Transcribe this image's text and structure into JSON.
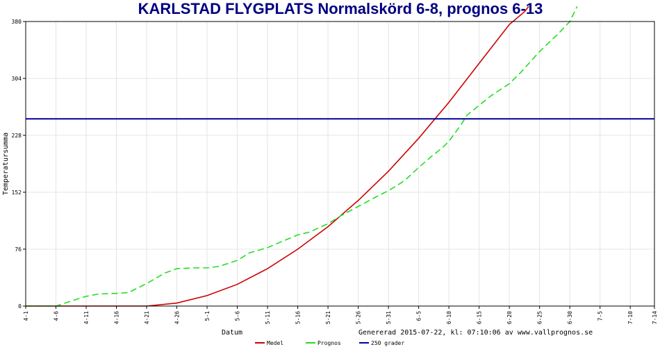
{
  "chart_data": {
    "type": "line",
    "title": "KARLSTAD FLYGPLATS Normalskörd 6-8, prognos 6-13",
    "xlabel": "Datum",
    "ylabel": "Temperatursumma",
    "generated_note": "Genererad 2015-07-22, kl: 07:10:06 av www.vallprognos.se",
    "ylim": [
      0,
      380
    ],
    "y_ticks": [
      "0",
      "76",
      "152",
      "228",
      "304",
      "380"
    ],
    "x_range_days": [
      0,
      104
    ],
    "x_ticks": [
      {
        "label": "4-1",
        "day": 0
      },
      {
        "label": "4-6",
        "day": 5
      },
      {
        "label": "4-11",
        "day": 10
      },
      {
        "label": "4-16",
        "day": 15
      },
      {
        "label": "4-21",
        "day": 20
      },
      {
        "label": "4-26",
        "day": 25
      },
      {
        "label": "5-1",
        "day": 30
      },
      {
        "label": "5-6",
        "day": 35
      },
      {
        "label": "5-11",
        "day": 40
      },
      {
        "label": "5-16",
        "day": 45
      },
      {
        "label": "5-21",
        "day": 50
      },
      {
        "label": "5-26",
        "day": 55
      },
      {
        "label": "5-31",
        "day": 60
      },
      {
        "label": "6-5",
        "day": 65
      },
      {
        "label": "6-10",
        "day": 70
      },
      {
        "label": "6-15",
        "day": 75
      },
      {
        "label": "6-20",
        "day": 80
      },
      {
        "label": "6-25",
        "day": 85
      },
      {
        "label": "6-30",
        "day": 90
      },
      {
        "label": "7-5",
        "day": 95
      },
      {
        "label": "7-10",
        "day": 100
      },
      {
        "label": "7-14",
        "day": 104
      }
    ],
    "grid": true,
    "legend_position": "bottom",
    "series": [
      {
        "name": "Medel",
        "color": "#cc0000",
        "dashed": false,
        "x": [
          0,
          20,
          25,
          30,
          35,
          40,
          45,
          50,
          55,
          60,
          65,
          70,
          75,
          80,
          82.5,
          83.2
        ],
        "y": [
          0,
          0,
          4,
          14,
          29,
          50,
          76,
          106,
          141,
          180,
          224,
          272,
          324,
          376,
          393,
          400
        ]
      },
      {
        "name": "Prognos",
        "color": "#22dd22",
        "dashed": true,
        "x": [
          0,
          5,
          8,
          10,
          12,
          15,
          17,
          20,
          23,
          25,
          28,
          30,
          32,
          35,
          37,
          40,
          42,
          45,
          47,
          50,
          52,
          55,
          58,
          60,
          62,
          63,
          65,
          67,
          69,
          70,
          72,
          73,
          75,
          77,
          80,
          82,
          85,
          88,
          90,
          91.2
        ],
        "y": [
          0,
          0,
          8,
          13,
          16,
          17,
          18,
          30,
          44,
          50,
          51,
          51,
          53,
          61,
          71,
          78,
          85,
          95,
          99,
          110,
          120,
          133,
          146,
          154,
          164,
          170,
          185,
          199,
          212,
          220,
          242,
          255,
          268,
          281,
          297,
          313,
          340,
          363,
          380,
          400
        ]
      },
      {
        "name": "250 grader",
        "color": "#000099",
        "dashed": false,
        "x": [
          0,
          104
        ],
        "y": [
          250,
          250
        ]
      }
    ]
  }
}
